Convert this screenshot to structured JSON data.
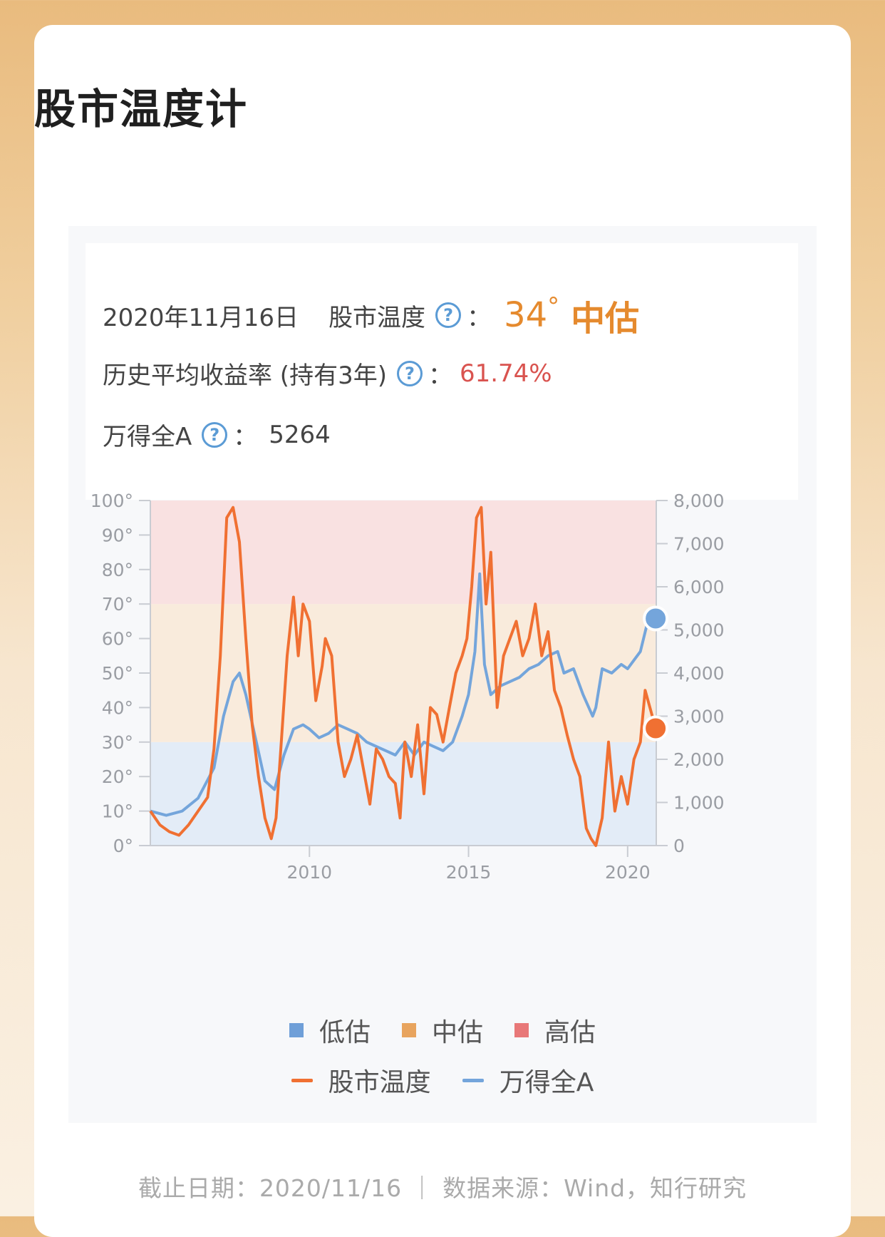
{
  "page": {
    "title": "股市温度计"
  },
  "info": {
    "date": "2020年11月16日",
    "temp_label": "股市温度",
    "help_glyph": "?",
    "colon": "：",
    "temp_value": "34",
    "temp_degree": "°",
    "temp_level": "中估",
    "return_label": "历史平均收益率 (持有3年)",
    "return_value": "61.74%",
    "index_label": "万得全A",
    "index_value": "5264"
  },
  "legend": {
    "zones": [
      {
        "label": "低估",
        "color": "#6f9fd8"
      },
      {
        "label": "中估",
        "color": "#e8a45e"
      },
      {
        "label": "高估",
        "color": "#e87878"
      }
    ],
    "series": [
      {
        "label": "股市温度",
        "color": "#f07032"
      },
      {
        "label": "万得全A",
        "color": "#74a5db"
      }
    ]
  },
  "footer": {
    "text": "截止日期：2020/11/16 ｜ 数据来源：Wind，知行研究"
  },
  "chart_data": {
    "type": "line",
    "x_range": [
      2005.0,
      2020.9
    ],
    "x_ticks": [
      "2010",
      "2015",
      "2020"
    ],
    "y_left": {
      "range": [
        0,
        100
      ],
      "ticks": [
        "0°",
        "10°",
        "20°",
        "30°",
        "40°",
        "50°",
        "60°",
        "70°",
        "80°",
        "90°",
        "100°"
      ]
    },
    "y_right": {
      "range": [
        0,
        8000
      ],
      "ticks": [
        "0",
        "1,000",
        "2,000",
        "3,000",
        "4,000",
        "5,000",
        "6,000",
        "7,000",
        "8,000"
      ]
    },
    "zones": [
      {
        "label": "低估",
        "from": 0,
        "to": 30,
        "color": "#e3ecf7"
      },
      {
        "label": "中估",
        "from": 30,
        "to": 70,
        "color": "#f9ebdc"
      },
      {
        "label": "高估",
        "from": 70,
        "to": 100,
        "color": "#f9e1e1"
      }
    ],
    "series": [
      {
        "name": "股市温度",
        "axis": "left",
        "color": "#f07032",
        "x": [
          2005.0,
          2005.3,
          2005.6,
          2005.9,
          2006.2,
          2006.5,
          2006.8,
          2007.0,
          2007.2,
          2007.4,
          2007.6,
          2007.8,
          2008.0,
          2008.2,
          2008.4,
          2008.6,
          2008.8,
          2008.95,
          2009.1,
          2009.3,
          2009.5,
          2009.65,
          2009.8,
          2010.0,
          2010.2,
          2010.4,
          2010.5,
          2010.7,
          2010.9,
          2011.1,
          2011.3,
          2011.5,
          2011.7,
          2011.9,
          2012.1,
          2012.3,
          2012.5,
          2012.7,
          2012.85,
          2013.0,
          2013.2,
          2013.4,
          2013.6,
          2013.8,
          2014.0,
          2014.2,
          2014.4,
          2014.6,
          2014.8,
          2014.95,
          2015.1,
          2015.25,
          2015.4,
          2015.55,
          2015.7,
          2015.9,
          2016.1,
          2016.3,
          2016.5,
          2016.7,
          2016.9,
          2017.1,
          2017.3,
          2017.5,
          2017.7,
          2017.9,
          2018.1,
          2018.3,
          2018.5,
          2018.7,
          2018.85,
          2019.0,
          2019.2,
          2019.4,
          2019.6,
          2019.8,
          2020.0,
          2020.2,
          2020.4,
          2020.55,
          2020.7,
          2020.88
        ],
        "y": [
          10,
          6,
          4,
          3,
          6,
          10,
          14,
          28,
          55,
          95,
          98,
          88,
          60,
          35,
          20,
          8,
          2,
          8,
          28,
          55,
          72,
          55,
          70,
          65,
          42,
          52,
          60,
          55,
          30,
          20,
          25,
          32,
          22,
          12,
          28,
          25,
          20,
          18,
          8,
          30,
          20,
          35,
          15,
          40,
          38,
          30,
          40,
          50,
          55,
          60,
          75,
          95,
          98,
          70,
          85,
          40,
          55,
          60,
          65,
          55,
          60,
          70,
          55,
          62,
          45,
          40,
          32,
          25,
          20,
          5,
          2,
          0,
          8,
          30,
          10,
          20,
          12,
          25,
          30,
          45,
          40,
          34
        ]
      },
      {
        "name": "万得全A",
        "axis": "right",
        "color": "#74a5db",
        "x": [
          2005.0,
          2005.5,
          2006.0,
          2006.5,
          2007.0,
          2007.3,
          2007.6,
          2007.8,
          2008.0,
          2008.3,
          2008.6,
          2008.9,
          2009.2,
          2009.5,
          2009.8,
          2010.0,
          2010.3,
          2010.6,
          2010.9,
          2011.2,
          2011.5,
          2011.8,
          2012.1,
          2012.4,
          2012.7,
          2013.0,
          2013.3,
          2013.6,
          2013.9,
          2014.2,
          2014.5,
          2014.8,
          2015.0,
          2015.2,
          2015.35,
          2015.5,
          2015.7,
          2016.0,
          2016.3,
          2016.6,
          2016.9,
          2017.2,
          2017.5,
          2017.8,
          2018.0,
          2018.3,
          2018.6,
          2018.9,
          2019.0,
          2019.2,
          2019.5,
          2019.8,
          2020.0,
          2020.2,
          2020.4,
          2020.6,
          2020.88
        ],
        "y": [
          800,
          700,
          800,
          1100,
          1800,
          3000,
          3800,
          4000,
          3500,
          2500,
          1500,
          1300,
          2100,
          2700,
          2800,
          2700,
          2500,
          2600,
          2800,
          2700,
          2600,
          2400,
          2300,
          2200,
          2100,
          2400,
          2100,
          2400,
          2300,
          2200,
          2400,
          3000,
          3500,
          4500,
          6300,
          4200,
          3500,
          3700,
          3800,
          3900,
          4100,
          4200,
          4400,
          4500,
          4000,
          4100,
          3500,
          3000,
          3200,
          4100,
          4000,
          4200,
          4100,
          4300,
          4500,
          5100,
          5264
        ]
      }
    ]
  }
}
